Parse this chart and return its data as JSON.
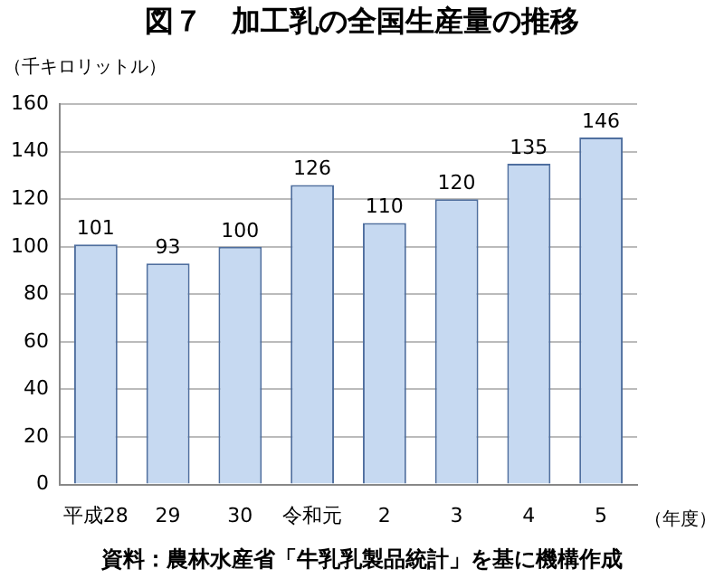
{
  "chart_data": {
    "type": "bar",
    "title": "図７　加工乳の全国生産量の推移",
    "ylabel": "（千キロリットル）",
    "xlabel": "（年度）",
    "categories": [
      "平成28",
      "29",
      "30",
      "令和元",
      "2",
      "3",
      "4",
      "5"
    ],
    "values": [
      101,
      93,
      100,
      126,
      110,
      120,
      135,
      146
    ],
    "color": "#c6d9f1",
    "ylim": [
      0,
      160
    ],
    "yticks": [
      0,
      20,
      40,
      60,
      80,
      100,
      120,
      140,
      160
    ],
    "grid": "y",
    "data_labels": true,
    "annotations": [
      "資料：農林水産省「牛乳乳製品統計」を基に機構作成"
    ]
  }
}
